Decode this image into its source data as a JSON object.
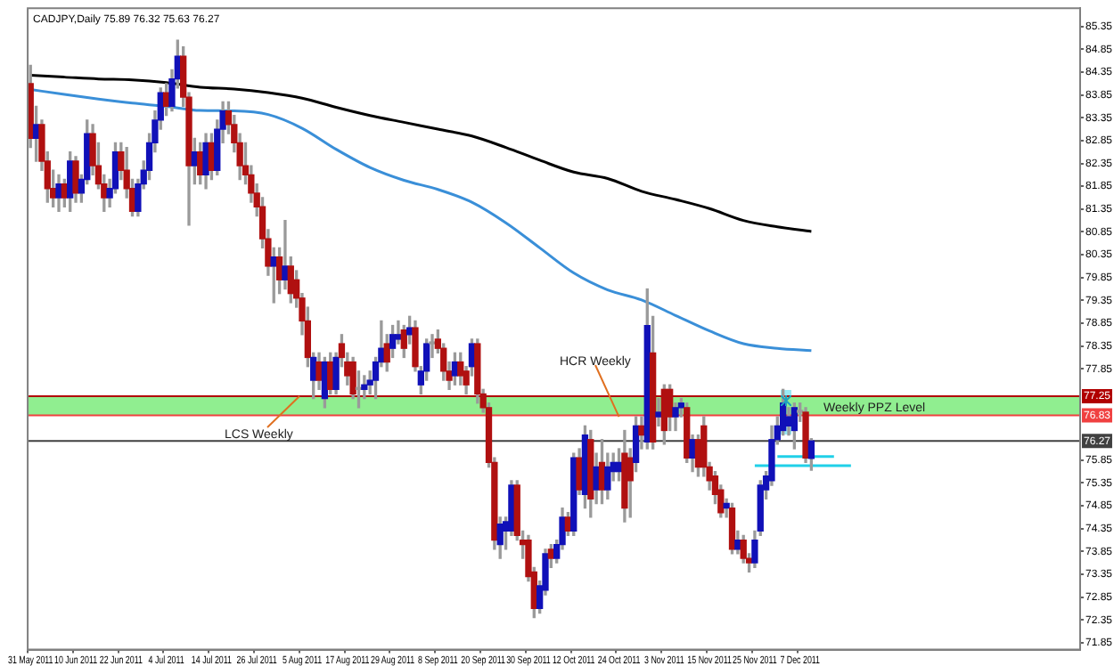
{
  "chart_data": {
    "type": "candlestick",
    "title": "CADJPY,Daily 75.89 76.32 75.63 76.27",
    "categories": [
      "31 May 2011",
      null,
      null,
      null,
      null,
      null,
      null,
      null,
      "10 Jun 2011",
      null,
      null,
      null,
      null,
      null,
      null,
      null,
      "22 Jun 2011",
      null,
      null,
      null,
      null,
      null,
      null,
      null,
      "4 Jul 2011",
      null,
      null,
      null,
      null,
      null,
      null,
      null,
      "14 Jul 2011",
      null,
      null,
      null,
      null,
      null,
      null,
      null,
      "26 Jul 2011",
      null,
      null,
      null,
      null,
      null,
      null,
      null,
      "5 Aug 2011",
      null,
      null,
      null,
      null,
      null,
      null,
      null,
      "17 Aug 2011",
      null,
      null,
      null,
      null,
      null,
      null,
      null,
      "29 Aug 2011",
      null,
      null,
      null,
      null,
      null,
      null,
      null,
      "8 Sep 2011",
      null,
      null,
      null,
      null,
      null,
      null,
      null,
      "20 Sep 2011",
      null,
      null,
      null,
      null,
      null,
      null,
      null,
      "30 Sep 2011",
      null,
      null,
      null,
      null,
      null,
      null,
      null,
      "12 Oct 2011",
      null,
      null,
      null,
      null,
      null,
      null,
      null,
      "24 Oct 2011",
      null,
      null,
      null,
      null,
      null,
      null,
      null,
      "3 Nov 2011",
      null,
      null,
      null,
      null,
      null,
      null,
      null,
      "15 Nov 2011",
      null,
      null,
      null,
      null,
      null,
      null,
      null,
      "25 Nov 2011",
      null,
      null,
      null,
      null,
      null,
      null,
      null,
      "7 Dec 2011",
      null,
      null,
      null,
      null,
      null,
      null,
      null,
      null,
      null,
      null,
      null,
      null,
      null,
      null,
      null,
      null,
      null,
      null,
      null,
      null,
      null,
      null,
      null,
      null,
      null,
      null,
      null,
      null,
      null,
      null,
      null,
      null,
      null,
      null,
      null,
      null,
      null,
      null,
      null,
      null,
      null,
      null,
      null,
      null,
      null,
      null,
      null,
      null,
      null
    ],
    "ohlc": [
      [
        84.1,
        84.5,
        82.7,
        82.9
      ],
      [
        82.9,
        83.6,
        82.4,
        83.2
      ],
      [
        83.2,
        83.3,
        82.2,
        82.4
      ],
      [
        82.4,
        82.6,
        81.5,
        81.8
      ],
      [
        81.8,
        82.2,
        81.4,
        81.6
      ],
      [
        81.6,
        82.1,
        81.3,
        81.9
      ],
      [
        81.9,
        82.0,
        81.4,
        81.6
      ],
      [
        81.6,
        82.6,
        81.3,
        82.4
      ],
      [
        82.4,
        82.5,
        81.5,
        81.7
      ],
      [
        81.7,
        82.1,
        81.5,
        82.0
      ],
      [
        82.0,
        83.3,
        81.9,
        83.0
      ],
      [
        83.0,
        83.2,
        82.1,
        82.3
      ],
      [
        82.3,
        82.8,
        81.8,
        81.9
      ],
      [
        81.9,
        82.1,
        81.3,
        81.6
      ],
      [
        81.6,
        82.0,
        81.4,
        81.8
      ],
      [
        81.8,
        82.8,
        81.7,
        82.6
      ],
      [
        82.6,
        82.8,
        82.0,
        82.2
      ],
      [
        82.2,
        82.7,
        81.6,
        81.8
      ],
      [
        81.8,
        82.0,
        81.2,
        81.3
      ],
      [
        81.3,
        82.0,
        81.2,
        81.9
      ],
      [
        81.9,
        82.4,
        81.8,
        82.2
      ],
      [
        82.2,
        83.0,
        82.0,
        82.8
      ],
      [
        82.8,
        83.5,
        82.6,
        83.3
      ],
      [
        83.3,
        84.0,
        83.1,
        83.9
      ],
      [
        83.9,
        84.1,
        83.4,
        83.6
      ],
      [
        83.6,
        84.4,
        83.5,
        84.2
      ],
      [
        84.2,
        85.05,
        84.0,
        84.7
      ],
      [
        84.7,
        84.9,
        83.6,
        83.8
      ],
      [
        83.8,
        83.9,
        81.0,
        82.3
      ],
      [
        82.3,
        82.9,
        81.9,
        82.6
      ],
      [
        82.6,
        82.8,
        81.9,
        82.1
      ],
      [
        82.1,
        83.0,
        81.8,
        82.8
      ],
      [
        82.8,
        83.0,
        82.0,
        82.2
      ],
      [
        82.2,
        83.3,
        82.1,
        83.1
      ],
      [
        83.1,
        83.7,
        82.8,
        83.5
      ],
      [
        83.5,
        83.7,
        83.0,
        83.2
      ],
      [
        83.2,
        83.4,
        82.6,
        82.8
      ],
      [
        82.8,
        83.0,
        82.0,
        82.3
      ],
      [
        82.3,
        82.8,
        81.9,
        82.1
      ],
      [
        82.1,
        82.3,
        81.5,
        81.7
      ],
      [
        81.7,
        81.9,
        81.2,
        81.4
      ],
      [
        81.4,
        81.6,
        80.5,
        80.7
      ],
      [
        80.7,
        80.9,
        79.9,
        80.1
      ],
      [
        80.1,
        80.5,
        79.3,
        80.3
      ],
      [
        80.3,
        80.5,
        79.5,
        79.8
      ],
      [
        79.8,
        81.1,
        79.6,
        80.1
      ],
      [
        80.1,
        80.3,
        79.3,
        79.5
      ],
      [
        79.8,
        80.0,
        79.2,
        79.4
      ],
      [
        79.4,
        79.5,
        78.6,
        78.9
      ],
      [
        78.9,
        79.2,
        77.9,
        78.1
      ],
      [
        77.6,
        78.2,
        77.2,
        78.1
      ],
      [
        78.0,
        78.2,
        77.4,
        77.6
      ],
      [
        77.2,
        78.1,
        77.0,
        78.0
      ],
      [
        78.0,
        78.2,
        77.3,
        77.4
      ],
      [
        77.4,
        78.2,
        77.3,
        78.1
      ],
      [
        78.4,
        78.6,
        77.9,
        78.1
      ],
      [
        78.0,
        78.2,
        77.5,
        77.7
      ],
      [
        78.0,
        78.1,
        77.2,
        77.3
      ],
      [
        77.4,
        77.8,
        77.0,
        77.4
      ],
      [
        77.4,
        77.7,
        77.2,
        77.5
      ],
      [
        77.5,
        77.8,
        77.3,
        77.6
      ],
      [
        77.6,
        78.1,
        77.2,
        78.0
      ],
      [
        78.0,
        78.9,
        77.9,
        78.3
      ],
      [
        78.4,
        78.6,
        77.8,
        78.0
      ],
      [
        78.3,
        78.8,
        78.1,
        78.6
      ],
      [
        78.5,
        78.9,
        78.4,
        78.6
      ],
      [
        78.7,
        78.8,
        78.1,
        78.3
      ],
      [
        78.6,
        79.0,
        78.4,
        78.75
      ],
      [
        78.75,
        78.9,
        77.8,
        77.9
      ],
      [
        77.5,
        77.9,
        77.3,
        77.8
      ],
      [
        77.8,
        78.5,
        77.6,
        78.4
      ],
      [
        78.4,
        78.6,
        78.1,
        78.4
      ],
      [
        78.5,
        78.7,
        78.2,
        78.3
      ],
      [
        78.3,
        78.4,
        77.6,
        77.8
      ],
      [
        77.8,
        78.0,
        77.4,
        77.6
      ],
      [
        77.7,
        78.2,
        77.5,
        78.0
      ],
      [
        78.0,
        78.2,
        77.5,
        77.7
      ],
      [
        77.8,
        77.9,
        77.3,
        77.5
      ],
      [
        77.9,
        78.5,
        77.7,
        78.4
      ],
      [
        78.4,
        78.5,
        77.1,
        77.3
      ],
      [
        77.3,
        77.4,
        76.9,
        77.0
      ],
      [
        77.0,
        77.1,
        75.7,
        75.8
      ],
      [
        75.8,
        75.9,
        73.9,
        74.1
      ],
      [
        74.0,
        74.6,
        73.7,
        74.45
      ],
      [
        74.3,
        74.6,
        73.9,
        74.5
      ],
      [
        74.3,
        75.4,
        74.2,
        75.3
      ],
      [
        75.3,
        75.4,
        74.1,
        74.2
      ],
      [
        74.1,
        74.3,
        73.7,
        74.0
      ],
      [
        74.1,
        74.2,
        73.2,
        73.3
      ],
      [
        73.4,
        73.5,
        72.4,
        72.6
      ],
      [
        72.6,
        73.2,
        72.5,
        73.1
      ],
      [
        73.0,
        73.9,
        72.9,
        73.8
      ],
      [
        73.9,
        74.0,
        73.5,
        73.7
      ],
      [
        73.7,
        74.1,
        73.6,
        74.0
      ],
      [
        74.0,
        74.8,
        73.9,
        74.6
      ],
      [
        74.6,
        74.7,
        74.2,
        74.3
      ],
      [
        74.3,
        76.0,
        74.2,
        75.9
      ],
      [
        75.9,
        76.1,
        75.1,
        75.2
      ],
      [
        75.1,
        76.6,
        74.8,
        76.4
      ],
      [
        76.3,
        76.5,
        74.6,
        75.0
      ],
      [
        75.2,
        76.0,
        74.9,
        75.7
      ],
      [
        75.8,
        76.3,
        74.9,
        75.2
      ],
      [
        75.2,
        76.0,
        75.0,
        75.7
      ],
      [
        75.6,
        76.0,
        75.4,
        75.8
      ],
      [
        75.6,
        76.1,
        75.4,
        75.8
      ],
      [
        76.0,
        76.5,
        74.5,
        74.8
      ],
      [
        75.9,
        76.1,
        74.6,
        75.4
      ],
      [
        75.8,
        76.8,
        75.6,
        76.6
      ],
      [
        76.6,
        76.8,
        76.1,
        76.4
      ],
      [
        76.25,
        79.6,
        76.1,
        78.8
      ],
      [
        78.2,
        79.0,
        76.1,
        76.25
      ],
      [
        76.8,
        77.2,
        76.6,
        76.9
      ],
      [
        77.4,
        77.5,
        76.2,
        76.5
      ],
      [
        77.4,
        77.5,
        76.5,
        76.8
      ],
      [
        76.8,
        77.1,
        76.5,
        77.0
      ],
      [
        77.0,
        77.2,
        76.8,
        77.1
      ],
      [
        77.0,
        77.1,
        75.8,
        75.9
      ],
      [
        75.9,
        76.4,
        75.6,
        76.3
      ],
      [
        76.3,
        76.4,
        75.5,
        75.7
      ],
      [
        76.6,
        76.8,
        75.5,
        75.7
      ],
      [
        75.7,
        75.8,
        75.2,
        75.4
      ],
      [
        75.5,
        75.6,
        74.9,
        75.1
      ],
      [
        75.2,
        75.3,
        74.6,
        74.7
      ],
      [
        74.8,
        75.0,
        74.6,
        74.9
      ],
      [
        74.8,
        74.9,
        73.8,
        73.9
      ],
      [
        73.9,
        74.3,
        73.8,
        74.1
      ],
      [
        74.1,
        74.2,
        73.6,
        73.7
      ],
      [
        73.7,
        73.8,
        73.4,
        73.6
      ],
      [
        73.6,
        74.3,
        73.5,
        74.1
      ],
      [
        74.3,
        75.4,
        74.2,
        75.3
      ],
      [
        75.2,
        75.6,
        75.0,
        75.5
      ],
      [
        75.4,
        76.6,
        75.3,
        76.3
      ],
      [
        76.3,
        76.8,
        76.2,
        76.6
      ],
      [
        76.5,
        77.4,
        76.4,
        77.1
      ],
      [
        76.6,
        77.0,
        76.4,
        76.8
      ],
      [
        76.5,
        77.1,
        76.1,
        77.0
      ],
      [
        76.9,
        77.1,
        76.7,
        76.9
      ],
      [
        76.9,
        77.0,
        75.8,
        75.9
      ],
      [
        75.89,
        76.32,
        75.63,
        76.27
      ],
      null,
      null,
      null,
      null,
      null,
      null,
      null,
      null,
      null,
      null,
      null,
      null,
      null,
      null,
      null,
      null,
      null,
      null,
      null,
      null,
      null,
      null,
      null,
      null,
      null,
      null,
      null,
      null,
      null,
      null,
      null,
      null,
      null,
      null,
      null,
      null,
      null,
      null,
      null,
      null,
      null,
      null,
      null,
      null,
      null,
      null,
      null
    ],
    "series": [
      {
        "type": "line",
        "color": "#000000",
        "values": [
          84.28,
          null,
          null,
          null,
          null,
          null,
          84.24,
          null,
          null,
          null,
          null,
          null,
          84.2,
          null,
          null,
          null,
          null,
          null,
          84.18,
          null,
          null,
          null,
          null,
          null,
          84.12,
          null,
          null,
          null,
          null,
          null,
          84.02,
          null,
          null,
          null,
          null,
          null,
          83.98,
          null,
          null,
          null,
          null,
          null,
          83.9,
          null,
          null,
          null,
          null,
          null,
          83.78,
          null,
          null,
          null,
          null,
          null,
          83.58,
          null,
          null,
          null,
          null,
          null,
          83.4,
          null,
          null,
          null,
          null,
          null,
          83.25,
          null,
          null,
          null,
          null,
          null,
          83.1,
          null,
          null,
          null,
          null,
          null,
          82.95,
          null,
          null,
          null,
          null,
          null,
          82.7,
          null,
          null,
          null,
          null,
          null,
          82.42,
          null,
          null,
          null,
          null,
          null,
          82.16,
          null,
          null,
          null,
          null,
          null,
          82.02,
          null,
          null,
          null,
          null,
          null,
          81.74,
          null,
          null,
          null,
          null,
          null,
          81.56,
          null,
          null,
          null,
          null,
          null,
          81.36,
          null,
          null,
          null,
          null,
          null,
          81.1,
          null,
          null,
          null,
          null,
          null,
          80.96,
          null,
          null,
          null,
          null,
          null,
          80.86,
          null,
          null,
          null,
          null,
          null,
          null,
          null,
          null,
          null,
          null,
          null,
          null,
          null,
          null,
          null,
          null,
          null,
          null,
          null,
          null,
          null,
          null,
          null,
          null,
          null,
          null,
          null,
          null,
          null,
          null,
          null,
          null,
          null,
          null,
          null,
          null,
          null,
          null,
          null,
          null,
          null,
          null,
          null,
          null,
          null,
          null,
          null
        ]
      },
      {
        "type": "line",
        "color": "#3a8fd8",
        "values": [
          83.97,
          null,
          null,
          null,
          null,
          null,
          83.86,
          null,
          null,
          null,
          null,
          null,
          83.76,
          null,
          null,
          null,
          null,
          null,
          83.67,
          null,
          null,
          null,
          null,
          null,
          83.6,
          null,
          null,
          null,
          null,
          null,
          83.51,
          null,
          null,
          null,
          null,
          null,
          83.5,
          null,
          null,
          null,
          null,
          null,
          83.42,
          null,
          null,
          null,
          null,
          null,
          83.12,
          null,
          null,
          null,
          null,
          null,
          82.66,
          null,
          null,
          null,
          null,
          null,
          82.26,
          null,
          null,
          null,
          null,
          null,
          81.98,
          null,
          null,
          null,
          null,
          null,
          81.78,
          null,
          null,
          null,
          null,
          null,
          81.5,
          null,
          null,
          null,
          null,
          null,
          81.05,
          null,
          null,
          null,
          null,
          null,
          80.5,
          null,
          null,
          null,
          null,
          null,
          79.95,
          null,
          null,
          null,
          null,
          null,
          79.58,
          null,
          null,
          null,
          null,
          null,
          79.36,
          null,
          null,
          null,
          null,
          null,
          79.02,
          null,
          null,
          null,
          null,
          null,
          78.68,
          null,
          null,
          null,
          null,
          null,
          78.4,
          null,
          null,
          null,
          null,
          null,
          78.3,
          null,
          null,
          null,
          null,
          null,
          78.25,
          null,
          null,
          null,
          null,
          null,
          null,
          null,
          null,
          null,
          null,
          null,
          null,
          null,
          null,
          null,
          null,
          null,
          null,
          null,
          null,
          null,
          null,
          null,
          null,
          null,
          null,
          null,
          null,
          null,
          null,
          null,
          null,
          null,
          null,
          null,
          null,
          null,
          null,
          null,
          null,
          null,
          null,
          null,
          null,
          null,
          null,
          null
        ]
      },
      {
        "type": "line",
        "color": "#20d0e8",
        "values": [
          null,
          null,
          null,
          null,
          null,
          null,
          null,
          null,
          null,
          null,
          null,
          null,
          null,
          null,
          null,
          null,
          null,
          null,
          null,
          null,
          null,
          null,
          null,
          null,
          null,
          null,
          null,
          null,
          null,
          null,
          null,
          null,
          null,
          null,
          null,
          null,
          null,
          null,
          null,
          null,
          null,
          null,
          null,
          null,
          null,
          null,
          null,
          null,
          null,
          null,
          null,
          null,
          null,
          null,
          null,
          null,
          null,
          null,
          null,
          null,
          null,
          null,
          null,
          null,
          null,
          null,
          null,
          null,
          null,
          null,
          null,
          null,
          null,
          null,
          null,
          null,
          null,
          null,
          null,
          null,
          null,
          null,
          null,
          null,
          null,
          null,
          null,
          null,
          null,
          null,
          null,
          null,
          null,
          null,
          null,
          null,
          null,
          null,
          null,
          null,
          null,
          null,
          null,
          null,
          null,
          null,
          null,
          null,
          null,
          null,
          null,
          null,
          null,
          null,
          null,
          null,
          null,
          null,
          null,
          null,
          null,
          null,
          null,
          null,
          null,
          null,
          null,
          null,
          null,
          null,
          null,
          null,
          75.93,
          null,
          null,
          null,
          null,
          null,
          null,
          null,
          null,
          null,
          75.93,
          null,
          null,
          null,
          null,
          null,
          null,
          null,
          null,
          null,
          null,
          null,
          null,
          null,
          null,
          null,
          null,
          null,
          null,
          null,
          null,
          null,
          null,
          null,
          null,
          null,
          null,
          null,
          null,
          null,
          null,
          null,
          null,
          null,
          null,
          null,
          null,
          null,
          null,
          null,
          null,
          null,
          null,
          null
        ]
      },
      {
        "type": "line",
        "color": "#20d0e8",
        "values": [
          null,
          null,
          null,
          null,
          null,
          null,
          null,
          null,
          null,
          null,
          null,
          null,
          null,
          null,
          null,
          null,
          null,
          null,
          null,
          null,
          null,
          null,
          null,
          null,
          null,
          null,
          null,
          null,
          null,
          null,
          null,
          null,
          null,
          null,
          null,
          null,
          null,
          null,
          null,
          null,
          null,
          null,
          null,
          null,
          null,
          null,
          null,
          null,
          null,
          null,
          null,
          null,
          null,
          null,
          null,
          null,
          null,
          null,
          null,
          null,
          null,
          null,
          null,
          null,
          null,
          null,
          null,
          null,
          null,
          null,
          null,
          null,
          null,
          null,
          null,
          null,
          null,
          null,
          null,
          null,
          null,
          null,
          null,
          null,
          null,
          null,
          null,
          null,
          null,
          null,
          null,
          null,
          null,
          null,
          null,
          null,
          null,
          null,
          null,
          null,
          null,
          null,
          null,
          null,
          null,
          null,
          null,
          null,
          null,
          null,
          null,
          null,
          null,
          null,
          null,
          null,
          null,
          null,
          null,
          null,
          null,
          null,
          null,
          null,
          null,
          null,
          null,
          null,
          75.73,
          null,
          null,
          null,
          null,
          null,
          null,
          null,
          null,
          null,
          null,
          null,
          null,
          null,
          null,
          null,
          null,
          75.73,
          null,
          null,
          null,
          null,
          null,
          null,
          null,
          null,
          null,
          null,
          null,
          null,
          null,
          null,
          null,
          null,
          null,
          null,
          null,
          null,
          null,
          null,
          null,
          null,
          null,
          null,
          null,
          null,
          null,
          null,
          null,
          null,
          null,
          null,
          null,
          null,
          null,
          null,
          null,
          null
        ]
      }
    ],
    "ylim": [
      71.7,
      85.75
    ],
    "yticks": [
      71.85,
      72.35,
      72.85,
      73.35,
      73.85,
      74.35,
      74.85,
      75.35,
      75.85,
      77.85,
      78.35,
      78.85,
      79.35,
      79.85,
      80.35,
      80.85,
      81.35,
      81.85,
      82.35,
      82.85,
      83.35,
      83.85,
      84.35,
      84.85,
      85.35
    ],
    "ref_lines": [
      {
        "axis": "y",
        "value": 77.25,
        "label": "77.25",
        "color": "#b00000"
      },
      {
        "axis": "y",
        "value": 76.83,
        "label": "76.83",
        "color": "#f04040"
      },
      {
        "axis": "y",
        "value": 76.27,
        "label": "76.27",
        "color": "#404040"
      }
    ],
    "bands": [
      {
        "axis": "y",
        "from": 76.83,
        "to": 77.25,
        "color": "#90ee90"
      }
    ],
    "annotations": [
      {
        "text": "LCS Weekly",
        "y": 77.25
      },
      {
        "text": "HCR Weekly",
        "x": "24 Oct 2011",
        "y": 76.8
      },
      "Weekly PPZ Level"
    ]
  }
}
